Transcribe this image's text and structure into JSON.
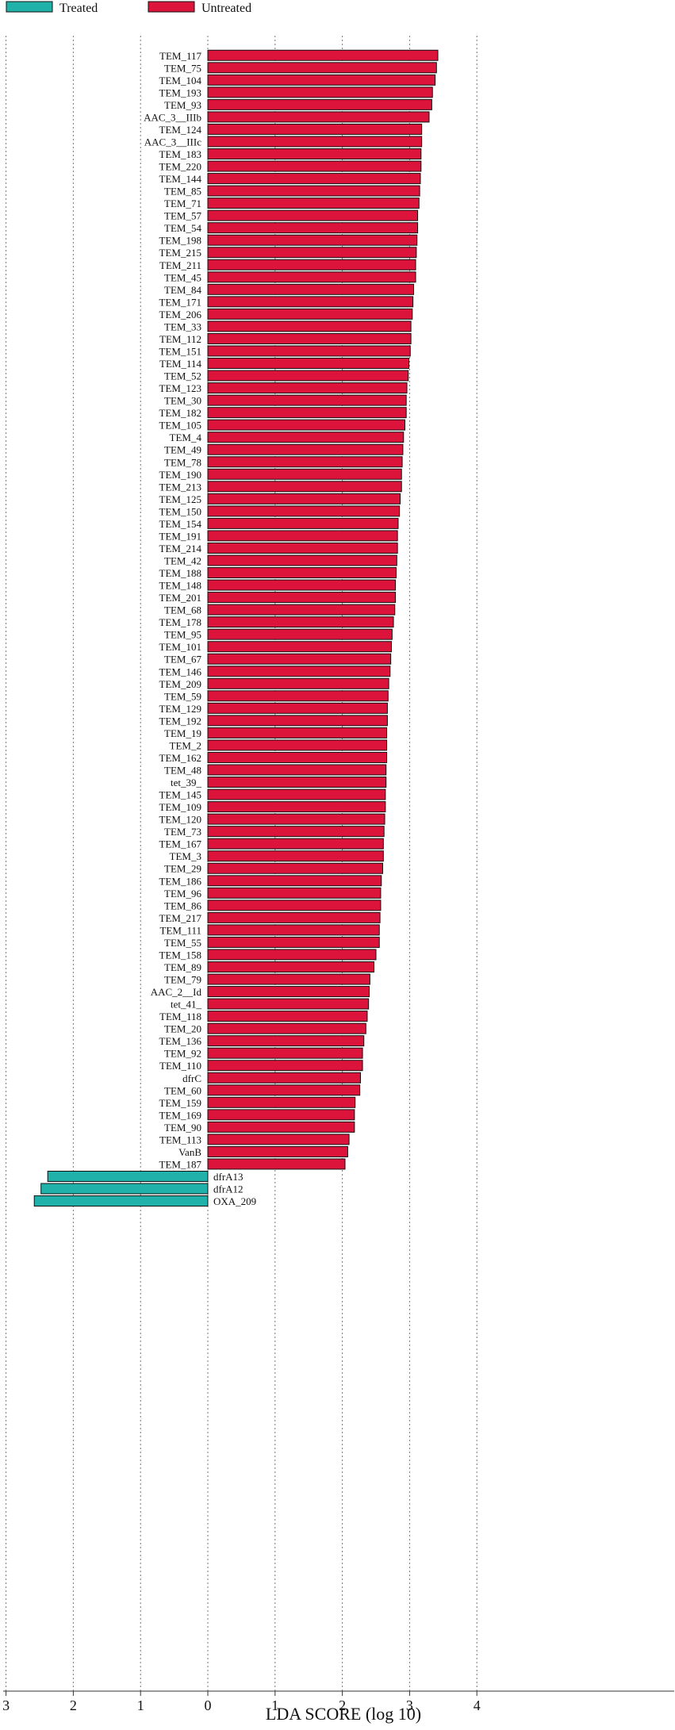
{
  "chart_data": {
    "type": "bar",
    "orientation": "horizontal",
    "xlabel": "LDA SCORE (log 10)",
    "xlim": [
      -3,
      4
    ],
    "xticks": [
      -3,
      -2,
      -1,
      0,
      1,
      2,
      3,
      4
    ],
    "xtick_labels": [
      "3",
      "2",
      "1",
      "0",
      "1",
      "2",
      "3",
      "4"
    ],
    "grid": "vertical-dotted",
    "legend": {
      "placement": "top-left",
      "entries": [
        {
          "name": "Treated",
          "color": "#20b2aa"
        },
        {
          "name": "Untreated",
          "color": "#dc143c"
        }
      ]
    },
    "series": [
      {
        "name": "Untreated",
        "color": "#dc143c",
        "categories": [
          "TEM_117",
          "TEM_75",
          "TEM_104",
          "TEM_193",
          "TEM_93",
          "AAC_3__IIIb",
          "TEM_124",
          "AAC_3__IIIc",
          "TEM_183",
          "TEM_220",
          "TEM_144",
          "TEM_85",
          "TEM_71",
          "TEM_57",
          "TEM_54",
          "TEM_198",
          "TEM_215",
          "TEM_211",
          "TEM_45",
          "TEM_84",
          "TEM_171",
          "TEM_206",
          "TEM_33",
          "TEM_112",
          "TEM_151",
          "TEM_114",
          "TEM_52",
          "TEM_123",
          "TEM_30",
          "TEM_182",
          "TEM_105",
          "TEM_4",
          "TEM_49",
          "TEM_78",
          "TEM_190",
          "TEM_213",
          "TEM_125",
          "TEM_150",
          "TEM_154",
          "TEM_191",
          "TEM_214",
          "TEM_42",
          "TEM_188",
          "TEM_148",
          "TEM_201",
          "TEM_68",
          "TEM_178",
          "TEM_95",
          "TEM_101",
          "TEM_67",
          "TEM_146",
          "TEM_209",
          "TEM_59",
          "TEM_129",
          "TEM_192",
          "TEM_19",
          "TEM_2",
          "TEM_162",
          "TEM_48",
          "tet_39_",
          "TEM_145",
          "TEM_109",
          "TEM_120",
          "TEM_73",
          "TEM_167",
          "TEM_3",
          "TEM_29",
          "TEM_186",
          "TEM_96",
          "TEM_86",
          "TEM_217",
          "TEM_111",
          "TEM_55",
          "TEM_158",
          "TEM_89",
          "TEM_79",
          "AAC_2__Id",
          "tet_41_",
          "TEM_118",
          "TEM_20",
          "TEM_136",
          "TEM_92",
          "TEM_110",
          "dfrC",
          "TEM_60",
          "TEM_159",
          "TEM_169",
          "TEM_90",
          "TEM_113",
          "VanB",
          "TEM_187"
        ],
        "values": [
          3.42,
          3.4,
          3.38,
          3.34,
          3.33,
          3.29,
          3.18,
          3.18,
          3.17,
          3.17,
          3.16,
          3.15,
          3.14,
          3.12,
          3.12,
          3.11,
          3.1,
          3.09,
          3.09,
          3.06,
          3.05,
          3.04,
          3.02,
          3.02,
          3.01,
          2.99,
          2.98,
          2.96,
          2.95,
          2.95,
          2.93,
          2.91,
          2.9,
          2.89,
          2.88,
          2.88,
          2.86,
          2.85,
          2.83,
          2.82,
          2.82,
          2.81,
          2.8,
          2.79,
          2.79,
          2.78,
          2.76,
          2.74,
          2.73,
          2.72,
          2.71,
          2.69,
          2.68,
          2.67,
          2.67,
          2.66,
          2.66,
          2.66,
          2.65,
          2.65,
          2.64,
          2.64,
          2.63,
          2.62,
          2.61,
          2.61,
          2.6,
          2.58,
          2.57,
          2.57,
          2.56,
          2.55,
          2.55,
          2.5,
          2.47,
          2.41,
          2.4,
          2.39,
          2.37,
          2.35,
          2.32,
          2.3,
          2.3,
          2.27,
          2.26,
          2.19,
          2.18,
          2.18,
          2.1,
          2.08,
          2.04
        ]
      },
      {
        "name": "Treated",
        "color": "#20b2aa",
        "categories": [
          "dfrA13",
          "dfrA12",
          "OXA_209"
        ],
        "values": [
          -2.38,
          -2.48,
          -2.58
        ]
      }
    ]
  }
}
